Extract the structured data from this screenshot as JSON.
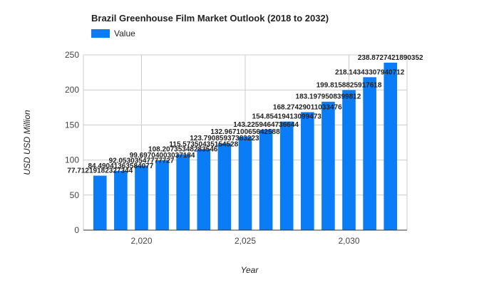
{
  "chart_data": {
    "type": "bar",
    "title": "Brazil Greenhouse Film Market Outlook (2018 to 2032)",
    "xlabel": "Year",
    "ylabel": "USD USD Million",
    "legend": {
      "label": "Value",
      "placement": "top-left"
    },
    "color": "#0a7cf5",
    "x": [
      2018,
      2019,
      2020,
      2021,
      2022,
      2023,
      2024,
      2025,
      2026,
      2027,
      2028,
      2029,
      2030,
      2031,
      2032
    ],
    "values": [
      77.71219182327344,
      84.49041363584077,
      92.05303547777727,
      99.69704003037184,
      108.20735348283546,
      115.57350435154528,
      123.79085937383223,
      132.96710065642588,
      143.2259464736644,
      154.85419413099473,
      168.27429011033476,
      183.1979508399812,
      199.8158825917618,
      218.14343307940712,
      238.8727421890352
    ],
    "value_labels": [
      "77.71219182327344",
      "84.49041363584077",
      "92.05303547777727",
      "99.69704003037184",
      "108.20735348283546",
      "115.57350435154528",
      "123.79085937383223",
      "132.96710065642588",
      "143.2259464736644",
      "154.85419413099473",
      "168.27429011033476",
      "183.1979508399812",
      "199.8158825917618",
      "218.14343307940712",
      "238.8727421890352"
    ],
    "x_ticks": [
      "2,020",
      "2,025",
      "2,030"
    ],
    "y_ticks": [
      "0",
      "50",
      "100",
      "150",
      "200",
      "250"
    ],
    "ylim": [
      0,
      250
    ],
    "xlim": [
      2017.2,
      2032.8
    ],
    "grid": true
  }
}
